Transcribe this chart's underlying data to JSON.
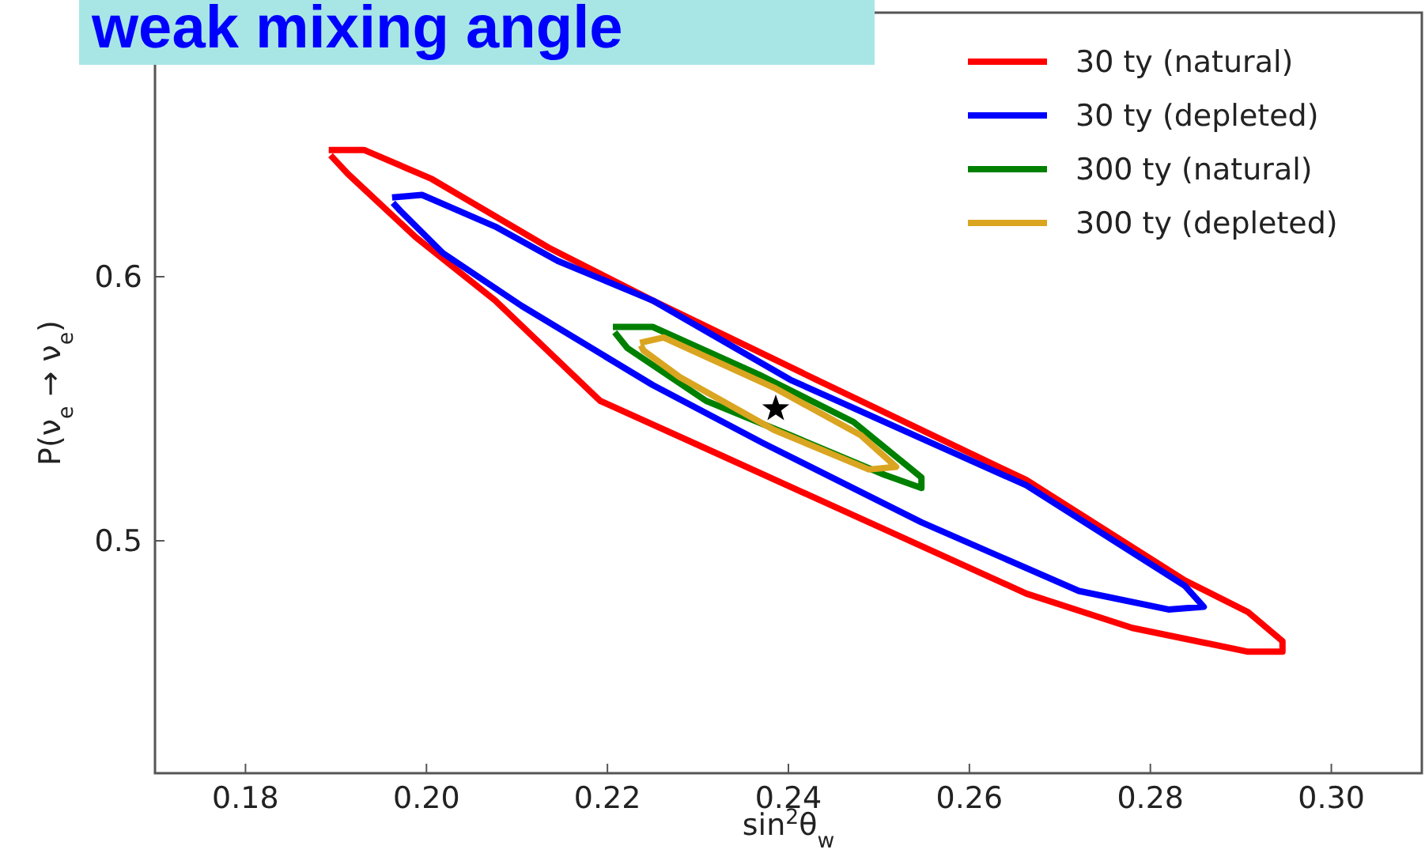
{
  "chart_data": {
    "type": "line",
    "title": "weak mixing angle",
    "xlabel": "sin$^{2}$θ$_{w}$",
    "ylabel": "P(ν$_{e}$ → ν$_{e}$)",
    "xlim": [
      0.17,
      0.31
    ],
    "xticks": [
      {
        "value": 0.18,
        "label": "0.18"
      },
      {
        "value": 0.2,
        "label": "0.20"
      },
      {
        "value": 0.22,
        "label": "0.22"
      },
      {
        "value": 0.24,
        "label": "0.24"
      },
      {
        "value": 0.26,
        "label": "0.26"
      },
      {
        "value": 0.28,
        "label": "0.28"
      },
      {
        "value": 0.3,
        "label": "0.30"
      }
    ],
    "ylim": [
      0.412,
      0.7
    ],
    "yticks": [
      0.5,
      0.6
    ],
    "grid": false,
    "legend": "top right",
    "line_style": "solid",
    "marker": "none",
    "series": [
      {
        "name": "30 ty (natural)",
        "color": "#ff0000",
        "x": [
          0.1892,
          0.1931,
          0.2006,
          0.2135,
          0.225,
          0.2431,
          0.2663,
          0.2838,
          0.2908,
          0.2946,
          0.2946,
          0.2908,
          0.278,
          0.2663,
          0.2489,
          0.2315,
          0.2192,
          0.2076,
          0.1988,
          0.1913,
          0.1894
        ],
        "values": [
          0.648,
          0.648,
          0.637,
          0.611,
          0.591,
          0.561,
          0.523,
          0.485,
          0.473,
          0.462,
          0.458,
          0.458,
          0.467,
          0.48,
          0.507,
          0.534,
          0.553,
          0.591,
          0.615,
          0.639,
          0.646
        ]
      },
      {
        "name": "30 ty (depleted)",
        "color": "#0000ff",
        "x": [
          0.1962,
          0.1995,
          0.2076,
          0.2145,
          0.225,
          0.2402,
          0.2663,
          0.2838,
          0.2859,
          0.282,
          0.2721,
          0.2547,
          0.2372,
          0.225,
          0.2105,
          0.2018,
          0.1971,
          0.1963
        ],
        "values": [
          0.63,
          0.631,
          0.619,
          0.606,
          0.591,
          0.561,
          0.521,
          0.483,
          0.475,
          0.474,
          0.481,
          0.507,
          0.537,
          0.559,
          0.589,
          0.609,
          0.625,
          0.628
        ]
      },
      {
        "name": "300 ty (natural)",
        "color": "#008000",
        "x": [
          0.2206,
          0.225,
          0.2367,
          0.2472,
          0.2547,
          0.2547,
          0.2506,
          0.2402,
          0.2309,
          0.2222,
          0.2208
        ],
        "values": [
          0.581,
          0.581,
          0.563,
          0.545,
          0.524,
          0.52,
          0.525,
          0.54,
          0.553,
          0.573,
          0.579
        ]
      },
      {
        "name": "300 ty (depleted)",
        "color": "#daa520",
        "x": [
          0.2236,
          0.2262,
          0.2384,
          0.248,
          0.2519,
          0.2489,
          0.2384,
          0.228,
          0.224,
          0.2237
        ],
        "values": [
          0.575,
          0.577,
          0.558,
          0.54,
          0.528,
          0.527,
          0.542,
          0.562,
          0.572,
          0.574
        ]
      },
      {
        "type": "scatter",
        "marker": "star",
        "color": "#000000",
        "x": [
          0.2386
        ],
        "values": [
          0.55
        ]
      }
    ]
  }
}
